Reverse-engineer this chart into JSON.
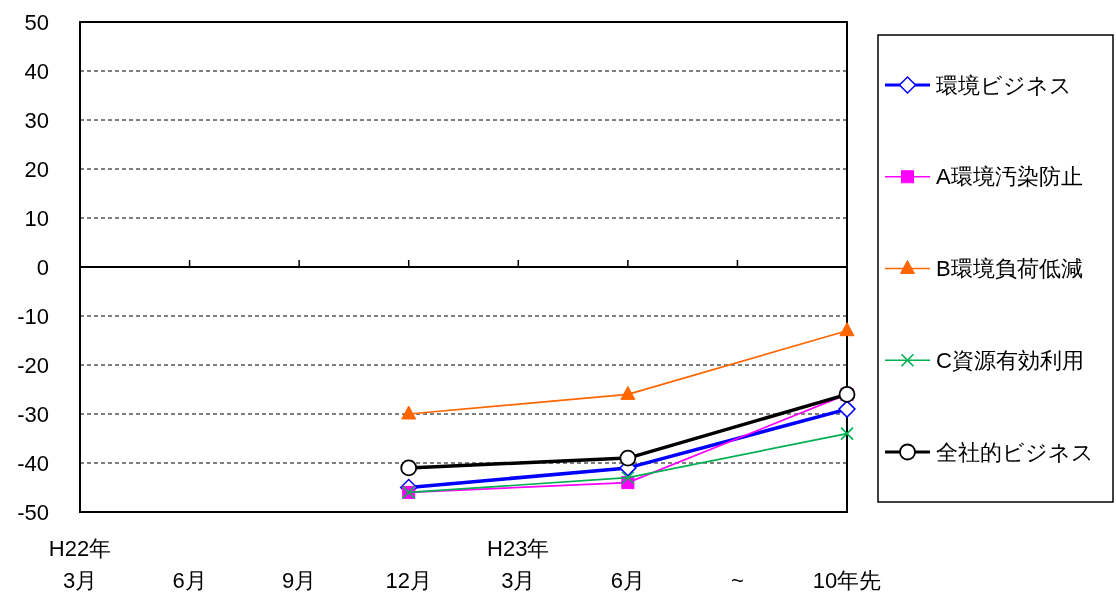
{
  "chart_data": {
    "type": "line",
    "categories": [
      "H22年\n3月",
      "6月",
      "9月",
      "12月",
      "H23年\n3月",
      "6月",
      "~",
      "10年先"
    ],
    "series": [
      {
        "name": "環境ビジネス",
        "color": "#0000ff",
        "marker": "diamond",
        "values": [
          null,
          null,
          null,
          -45,
          null,
          -41,
          null,
          -29
        ]
      },
      {
        "name": "A環境汚染防止",
        "color": "#ff00ff",
        "marker": "square",
        "values": [
          null,
          null,
          null,
          -46,
          null,
          -44,
          null,
          -26
        ]
      },
      {
        "name": "B環境負荷低減",
        "color": "#ff6600",
        "marker": "triangle",
        "values": [
          null,
          null,
          null,
          -30,
          null,
          -26,
          null,
          -13
        ]
      },
      {
        "name": "C資源有効利用",
        "color": "#00b050",
        "marker": "cross",
        "values": [
          null,
          null,
          null,
          -46,
          null,
          -43,
          null,
          -34
        ]
      },
      {
        "name": "全社的ビジネス",
        "color": "#000000",
        "marker": "circle",
        "values": [
          null,
          null,
          null,
          -41,
          null,
          -39,
          null,
          -26
        ]
      }
    ],
    "ylim": [
      -50,
      50
    ],
    "yticks": [
      -50,
      -40,
      -30,
      -20,
      -10,
      0,
      10,
      20,
      30,
      40,
      50
    ],
    "grid": "y",
    "legend": "right"
  }
}
